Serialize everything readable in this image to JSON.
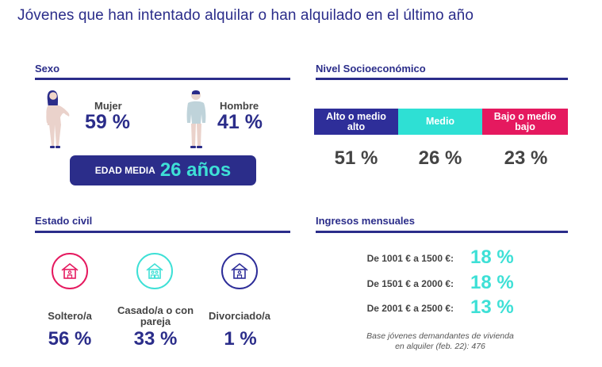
{
  "title": "Jóvenes que han intentado alquilar o han alquilado en el último año",
  "colors": {
    "navy": "#2b2d8a",
    "turquoise": "#3ee0d6",
    "pink": "#e5195f",
    "purple": "#2e2e99"
  },
  "sexo": {
    "heading": "Sexo",
    "mujer": {
      "label": "Mujer",
      "value": "59 %"
    },
    "hombre": {
      "label": "Hombre",
      "value": "41 %"
    },
    "edad_media": {
      "label": "EDAD MEDIA",
      "value": "26 años"
    }
  },
  "nse": {
    "heading": "Nivel Socioeconómico",
    "items": [
      {
        "label": "Alto o medio alto",
        "value": "51 %",
        "color": "#2e2e99"
      },
      {
        "label": "Medio",
        "value": "26 %",
        "color": "#2ee0d4"
      },
      {
        "label": "Bajo o medio bajo",
        "value": "23 %",
        "color": "#e5195f"
      }
    ]
  },
  "civil": {
    "heading": "Estado civil",
    "items": [
      {
        "label": "Soltero/a",
        "value": "56 %",
        "color": "#e5195f",
        "icon": "house-single-icon"
      },
      {
        "label": "Casado/a o con pareja",
        "value": "33 %",
        "color": "#3ee0d6",
        "icon": "house-couple-icon"
      },
      {
        "label": "Divorciado/a",
        "value": "1 %",
        "color": "#2e2e99",
        "icon": "house-single-icon"
      }
    ]
  },
  "ingresos": {
    "heading": "Ingresos mensuales",
    "rows": [
      {
        "label": "De 1001 € a 1500 €:",
        "value": "18 %"
      },
      {
        "label": "De 1501 € a 2000 €:",
        "value": "18 %"
      },
      {
        "label": "De 2001 € a 2500 €:",
        "value": "13 %"
      }
    ],
    "note_line1": "Base jóvenes demandantes de vivienda",
    "note_line2": "en alquiler (feb. 22): 476"
  }
}
